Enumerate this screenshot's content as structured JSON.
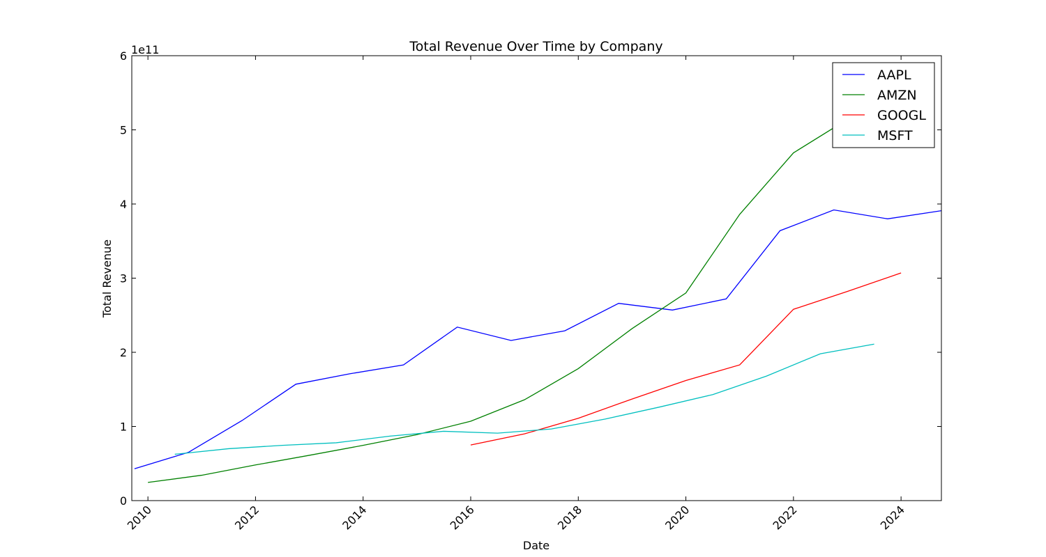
{
  "chart_data": {
    "type": "line",
    "title": "Total Revenue Over Time by Company",
    "xlabel": "Date",
    "ylabel": "Total Revenue",
    "y_offset_label": "1e11",
    "y_scale_factor": 100000000000,
    "xlim": [
      2009.7,
      2024.75
    ],
    "ylim": [
      0,
      600000000000
    ],
    "x_ticks": [
      2010,
      2012,
      2014,
      2016,
      2018,
      2020,
      2022,
      2024
    ],
    "x_tick_labels": [
      "2010",
      "2012",
      "2014",
      "2016",
      "2018",
      "2020",
      "2022",
      "2024"
    ],
    "y_ticks": [
      0,
      100000000000,
      200000000000,
      300000000000,
      400000000000,
      500000000000,
      600000000000
    ],
    "y_tick_labels": [
      "0",
      "1",
      "2",
      "3",
      "4",
      "5",
      "6"
    ],
    "grid": false,
    "legend_position": "top-right",
    "series": [
      {
        "name": "AAPL",
        "color": "#0000ff",
        "x": [
          2009.75,
          2010.75,
          2011.75,
          2012.75,
          2013.75,
          2014.75,
          2015.75,
          2016.75,
          2017.75,
          2018.75,
          2019.75,
          2020.75,
          2021.75,
          2022.75,
          2023.75,
          2024.75
        ],
        "y": [
          43000000000,
          65000000000,
          108000000000,
          157000000000,
          171000000000,
          183000000000,
          234000000000,
          216000000000,
          229000000000,
          266000000000,
          257000000000,
          272000000000,
          364000000000,
          392000000000,
          380000000000,
          391000000000
        ]
      },
      {
        "name": "AMZN",
        "color": "#008000",
        "x": [
          2010.0,
          2011.0,
          2012.0,
          2013.0,
          2014.0,
          2015.0,
          2016.0,
          2017.0,
          2018.0,
          2019.0,
          2020.0,
          2021.0,
          2022.0,
          2023.0,
          2024.0
        ],
        "y": [
          24500000000,
          34200000000,
          48100000000,
          61100000000,
          74500000000,
          89000000000,
          107000000000,
          136000000000,
          178000000000,
          232000000000,
          280000000000,
          386000000000,
          469000000000,
          514000000000,
          575000000000
        ]
      },
      {
        "name": "GOOGL",
        "color": "#ff0000",
        "x": [
          2016.0,
          2017.0,
          2018.0,
          2019.0,
          2020.0,
          2021.0,
          2022.0,
          2023.0,
          2024.0
        ],
        "y": [
          75000000000,
          90000000000,
          111000000000,
          137000000000,
          162000000000,
          183000000000,
          258000000000,
          282000000000,
          307000000000
        ]
      },
      {
        "name": "MSFT",
        "color": "#00bfbf",
        "x": [
          2010.5,
          2011.5,
          2012.5,
          2013.5,
          2014.5,
          2015.5,
          2016.5,
          2017.5,
          2018.5,
          2019.5,
          2020.5,
          2021.5,
          2022.5,
          2023.5
        ],
        "y": [
          62500000000,
          70000000000,
          74500000000,
          78000000000,
          87000000000,
          93500000000,
          91000000000,
          96600000000,
          110000000000,
          126000000000,
          143000000000,
          168000000000,
          198000000000,
          211000000000
        ]
      }
    ]
  }
}
